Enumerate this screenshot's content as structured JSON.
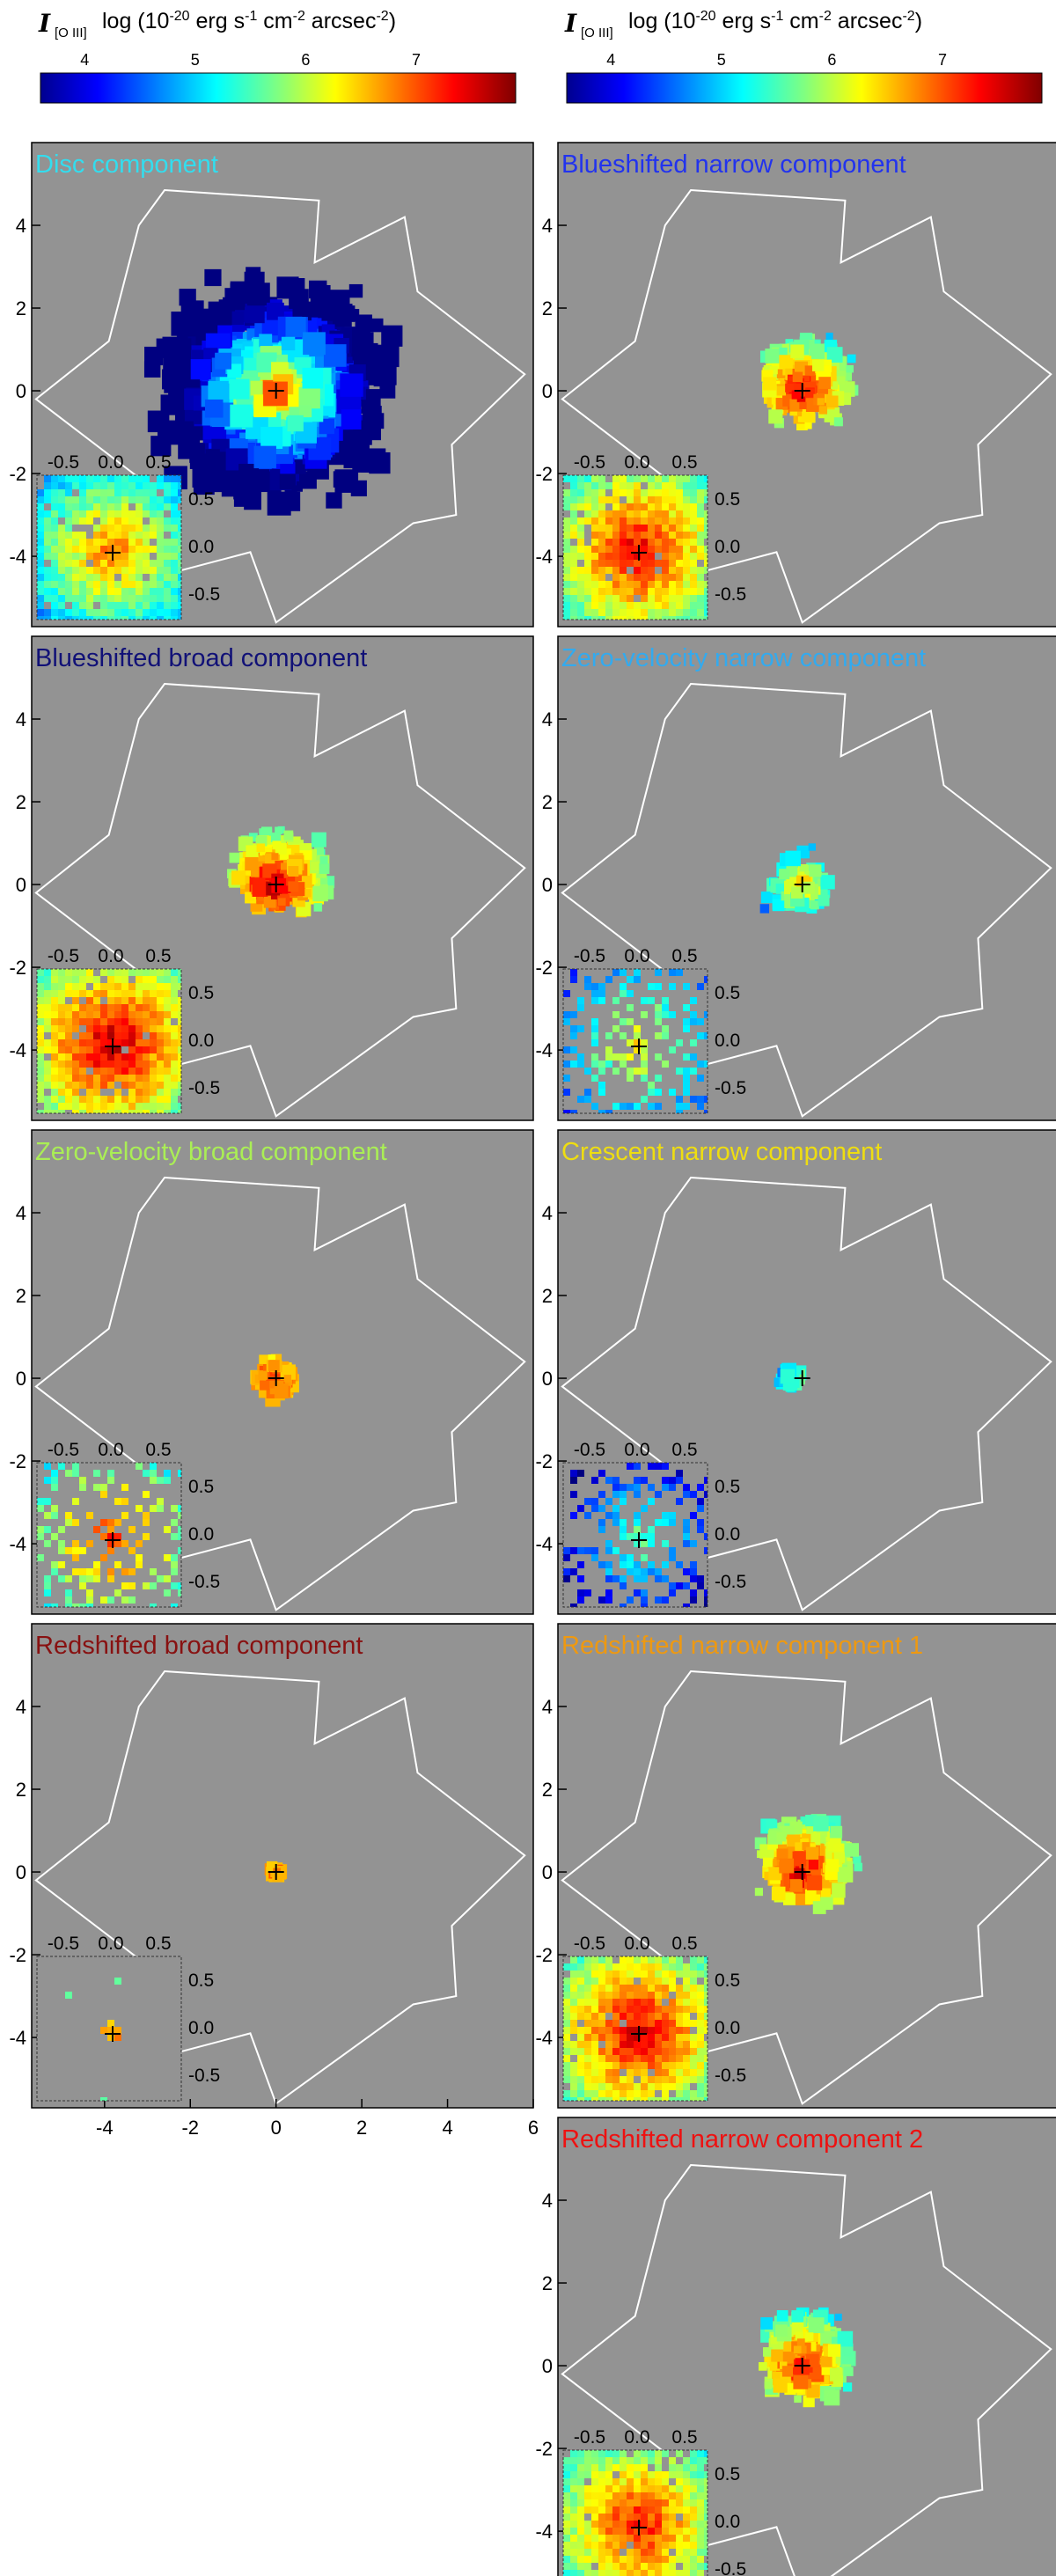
{
  "colorbar": {
    "symbol": "I",
    "subscript": "[O III]",
    "label_prefix": "log (10",
    "label_exp1": "-20",
    "label_mid1": " erg s",
    "label_exp2": "-1",
    "label_mid2": " cm",
    "label_exp3": "-2",
    "label_mid3": " arcsec",
    "label_exp4": "-2",
    "label_suffix": ")",
    "ticks": [
      "4",
      "5",
      "6",
      "7"
    ],
    "tick_values": [
      4,
      5,
      6,
      7
    ],
    "range": [
      3.6,
      7.9
    ]
  },
  "axes": {
    "x_ticks": [
      "-4",
      "-2",
      "0",
      "2",
      "4",
      "6"
    ],
    "y_ticks": [
      "4",
      "2",
      "0",
      "-2",
      "-4"
    ],
    "range": [
      -5.7,
      6.0
    ],
    "inset_x_ticks": [
      "-0.5",
      "0.0",
      "0.5"
    ],
    "inset_y_ticks": [
      "0.5",
      "0.0",
      "-0.5"
    ]
  },
  "colors": {
    "panel_bg": "#939393",
    "footprint": "#ffffff"
  },
  "chart_data": {
    "type": "heatmap",
    "panels": [
      {
        "title": "Disc component",
        "color": "#33ddee",
        "extent": "extended",
        "peak": 6.9
      },
      {
        "title": "Blueshifted narrow component",
        "color": "#2233ee",
        "extent": "central",
        "peak": 7.5
      },
      {
        "title": "Blueshifted broad component",
        "color": "#111177",
        "extent": "central",
        "peak": 7.7
      },
      {
        "title": "Zero-velocity narrow component",
        "color": "#33aaee",
        "extent": "sparse",
        "peak": 6.4
      },
      {
        "title": "Zero-velocity broad component",
        "color": "#aaee55",
        "extent": "compact",
        "peak": 7.2
      },
      {
        "title": "Crescent narrow component",
        "color": "#eedd11",
        "extent": "patch",
        "peak": 5.7
      },
      {
        "title": "Redshifted broad component",
        "color": "#881111",
        "extent": "tiny",
        "peak": 6.8
      },
      {
        "title": "Redshifted narrow component 1",
        "color": "#ee9911",
        "extent": "central",
        "peak": 7.6
      },
      {
        "title": "Redshifted narrow component 2",
        "color": "#ee1111",
        "extent": "central",
        "peak": 7.4
      }
    ]
  }
}
